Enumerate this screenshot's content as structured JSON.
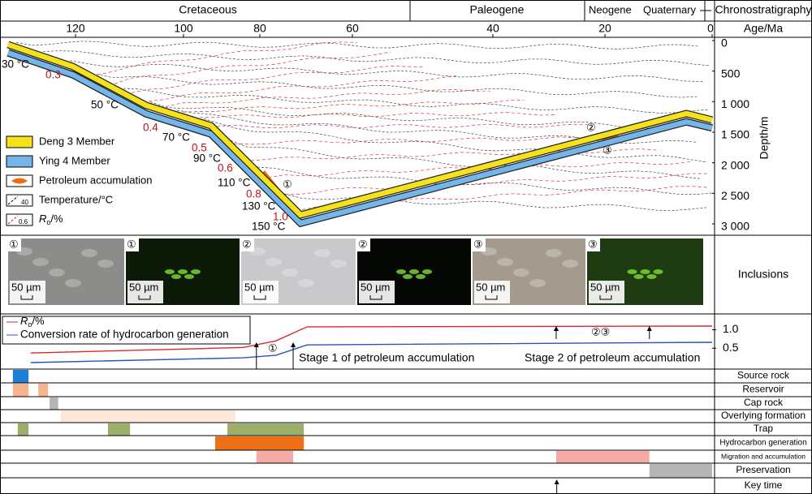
{
  "header": {
    "periods": [
      "Cretaceous",
      "Paleogene",
      "Neogene",
      "Quaternary"
    ],
    "row_label": "Chronostratigraphy"
  },
  "burial_chart": {
    "type": "line",
    "x_label": "Age/Ma",
    "y_label": "Depth/m",
    "xticks": [
      120,
      100,
      80,
      60,
      40,
      20,
      0
    ],
    "ylim": [
      0,
      3000
    ],
    "yticks": [
      0,
      500,
      {
        "value": 1000,
        "label": "1 000"
      },
      {
        "value": 1500,
        "label": "1 500"
      },
      {
        "value": 2000,
        "label": "2 000"
      },
      {
        "value": 2500,
        "label": "2 500"
      },
      {
        "value": 3000,
        "label": "3 000"
      }
    ],
    "age": [
      132.5,
      120.5,
      106.9,
      92.8,
      71.2,
      4.8,
      0
    ],
    "series": [
      {
        "name": "Deng 3 Member",
        "color": "#f5e21a",
        "values": [
          66,
          425,
          1062,
          1394,
          2854,
          1195,
          1300
        ]
      },
      {
        "name": "Ying 4 Member",
        "color": "#74b6ea",
        "values": [
          200,
          560,
          1200,
          1530,
          2990,
          1330,
          1430
        ]
      }
    ],
    "legend_extra": [
      "Petroleum accumulation",
      "Temperature/°C"
    ],
    "legend_ro": {
      "main": "R",
      "sub": "o",
      "unit": "/%"
    },
    "legend_icon_labels": [
      "40",
      "0.6"
    ],
    "temperature_labels": [
      "30 °C",
      "50 °C",
      "70 °C",
      "90 °C",
      "110 °C",
      "130 °C",
      "150 °C"
    ],
    "ro_labels": [
      "0.3",
      "0.4",
      "0.5",
      "0.6",
      "0.8",
      "1.0"
    ],
    "markers": [
      "①",
      "②",
      "③"
    ]
  },
  "inclusions": {
    "label": "Inclusions",
    "panels": [
      {
        "marker": "①",
        "scale": "50 µm"
      },
      {
        "marker": "①",
        "scale": "50 µm"
      },
      {
        "marker": "②",
        "scale": "50 µm"
      },
      {
        "marker": "②",
        "scale": "50 µm"
      },
      {
        "marker": "③",
        "scale": "50 µm"
      },
      {
        "marker": "③",
        "scale": "50 µm"
      }
    ]
  },
  "maturity_chart": {
    "type": "line",
    "age": [
      128.3,
      84.3,
      76.5,
      69.8,
      0
    ],
    "ylim": [
      0,
      1.1
    ],
    "yticks": [
      {
        "value": 1,
        "label": "1.0"
      },
      0.5
    ],
    "series": [
      {
        "name": {
          "main": "R",
          "sub": "o",
          "unit": "/%"
        },
        "color": "#e0262b",
        "values": [
          0.37,
          0.52,
          0.7,
          1.08,
          1.1
        ]
      },
      {
        "name": "Conversion rate of hydrocarbon generation",
        "color": "#2455b8",
        "values": [
          0.11,
          0.24,
          0.31,
          0.59,
          0.66
        ]
      }
    ],
    "arrows": [
      80.9,
      72.8,
      28.7,
      11.7
    ],
    "annotations": [
      "①",
      "②③",
      "Stage 1 of petroleum accumulation",
      "Stage 2 of petroleum accumulation"
    ]
  },
  "events": {
    "rows": [
      {
        "name": "Source rock",
        "bars": [
          {
            "start": 131.6,
            "end": 128.7,
            "color": "#1f7fd8"
          }
        ]
      },
      {
        "name": "Reservoir",
        "bars": [
          {
            "start": 131.6,
            "end": 128.7,
            "color": "#f7b48c"
          },
          {
            "start": 126.9,
            "end": 125.1,
            "color": "#f7b48c"
          }
        ]
      },
      {
        "name": "Cap rock",
        "bars": [
          {
            "start": 124.8,
            "end": 123.2,
            "color": "#b5b5b5"
          }
        ]
      },
      {
        "name": "Overlying formation",
        "bars": [
          {
            "start": 122.7,
            "end": 86.4,
            "color": "#fde8d8"
          }
        ]
      },
      {
        "name": "Trap",
        "bars": [
          {
            "start": 130.7,
            "end": 128.7,
            "color": "#9caf6a"
          },
          {
            "start": 114.0,
            "end": 109.9,
            "color": "#9caf6a"
          },
          {
            "start": 88.5,
            "end": 70.5,
            "color": "#9caf6a"
          }
        ]
      },
      {
        "name": "Hydrocarbon generation",
        "bars": [
          {
            "start": 91.7,
            "end": 70.5,
            "color": "#ee7014"
          }
        ]
      },
      {
        "name": "Migration and accumulation",
        "bars": [
          {
            "start": 80.9,
            "end": 72.8,
            "color": "#f4aaa6"
          },
          {
            "start": 28.7,
            "end": 11.7,
            "color": "#f4aaa6"
          }
        ]
      },
      {
        "name": "Preservation",
        "bars": [
          {
            "start": 11.7,
            "end": 0,
            "color": "#b5b5b5"
          }
        ]
      },
      {
        "name": "Key time",
        "arrows": [
          28.6
        ]
      }
    ]
  }
}
